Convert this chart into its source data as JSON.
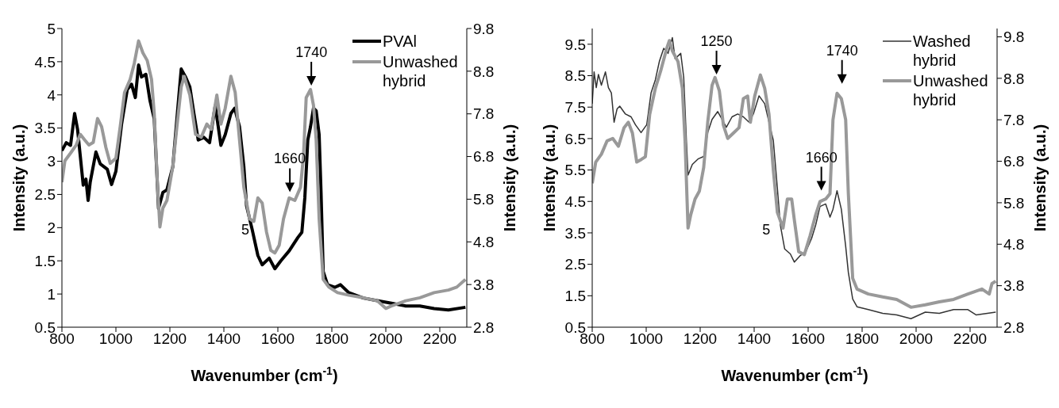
{
  "chart_data": [
    {
      "type": "line",
      "xlabel": "Wavenumber (cm$^{-1}$)",
      "ylabel": "Intensity (a.u.)",
      "y2label": "Intensity (a.u.)",
      "xlim": [
        800,
        2300
      ],
      "xticks": [
        800,
        1000,
        1200,
        1400,
        1600,
        1800,
        2000,
        2200
      ],
      "ylim": [
        0.5,
        5
      ],
      "yticks": [
        0.5,
        1,
        1.5,
        2,
        2.5,
        3,
        3.5,
        4,
        4.5,
        5
      ],
      "y2lim": [
        2.8,
        9.8
      ],
      "y2ticks": [
        2.8,
        3.8,
        4.8,
        5.8,
        6.8,
        7.8,
        8.8,
        9.8
      ],
      "legend": "top right",
      "marker": "none",
      "annotations": [
        "1740",
        "1660",
        "5"
      ],
      "series": [
        {
          "name": "PVAl",
          "color": "#000000",
          "x": [
            800,
            816,
            832,
            847,
            858,
            868,
            879,
            889,
            897,
            905,
            926,
            942,
            968,
            984,
            1000,
            1021,
            1042,
            1058,
            1072,
            1084,
            1095,
            1111,
            1126,
            1142,
            1158,
            1174,
            1189,
            1211,
            1226,
            1242,
            1258,
            1274,
            1289,
            1305,
            1326,
            1347,
            1368,
            1389,
            1405,
            1426,
            1440,
            1458,
            1474,
            1484,
            1505,
            1526,
            1542,
            1568,
            1589,
            1611,
            1642,
            1674,
            1689,
            1700,
            1711,
            1721,
            1732,
            1742,
            1753,
            1760,
            1768,
            1784,
            1811,
            1832,
            1863,
            1916,
            1968,
            2021,
            2074,
            2126,
            2179,
            2232,
            2295
          ],
          "values": [
            3.16,
            3.28,
            3.24,
            3.72,
            3.48,
            3.08,
            2.64,
            2.73,
            2.41,
            2.69,
            3.14,
            2.96,
            2.88,
            2.65,
            2.85,
            3.56,
            4.08,
            4.16,
            3.96,
            4.45,
            4.27,
            4.31,
            3.92,
            3.64,
            2.29,
            2.53,
            2.57,
            2.92,
            3.64,
            4.39,
            4.27,
            4.12,
            3.72,
            3.32,
            3.36,
            3.28,
            3.84,
            3.24,
            3.4,
            3.72,
            3.8,
            3.52,
            2.92,
            2.33,
            1.97,
            1.58,
            1.44,
            1.54,
            1.38,
            1.5,
            1.65,
            1.85,
            1.93,
            2.45,
            3.32,
            3.52,
            3.8,
            3.76,
            3.4,
            2.53,
            1.34,
            1.14,
            1.1,
            1.14,
            1.02,
            0.94,
            0.9,
            0.86,
            0.82,
            0.82,
            0.78,
            0.76,
            0.8
          ]
        },
        {
          "name": "Unwashed hybrid",
          "color": "#999999",
          "axis": "y2",
          "x": [
            800,
            811,
            832,
            853,
            868,
            884,
            900,
            916,
            932,
            947,
            963,
            979,
            1000,
            1016,
            1032,
            1053,
            1068,
            1084,
            1100,
            1116,
            1132,
            1142,
            1153,
            1163,
            1174,
            1189,
            1211,
            1226,
            1242,
            1253,
            1274,
            1295,
            1316,
            1337,
            1353,
            1374,
            1389,
            1405,
            1426,
            1442,
            1458,
            1474,
            1495,
            1511,
            1526,
            1542,
            1558,
            1574,
            1589,
            1605,
            1621,
            1642,
            1663,
            1684,
            1695,
            1705,
            1721,
            1732,
            1742,
            1753,
            1768,
            1789,
            1821,
            1863,
            1916,
            1968,
            2000,
            2021,
            2074,
            2126,
            2179,
            2232,
            2263,
            2295
          ],
          "values": [
            6.2,
            6.7,
            6.88,
            7.07,
            7.32,
            7.19,
            7.07,
            7.13,
            7.69,
            7.5,
            7.01,
            6.64,
            6.76,
            7.5,
            8.3,
            8.61,
            8.98,
            9.51,
            9.23,
            9.05,
            8.61,
            7.81,
            6.27,
            5.15,
            5.59,
            5.77,
            6.57,
            7.5,
            8.43,
            8.68,
            8.24,
            7.32,
            7.25,
            7.56,
            7.44,
            8.24,
            7.56,
            7.93,
            8.68,
            8.3,
            7.19,
            6.08,
            5.34,
            5.28,
            5.83,
            5.71,
            5.03,
            4.6,
            4.54,
            4.72,
            5.34,
            5.83,
            5.77,
            6.08,
            6.82,
            8.18,
            8.37,
            8,
            7.19,
            5.34,
            3.92,
            3.74,
            3.61,
            3.55,
            3.49,
            3.42,
            3.24,
            3.3,
            3.42,
            3.49,
            3.61,
            3.67,
            3.74,
            3.92
          ]
        }
      ]
    },
    {
      "type": "line",
      "xlabel": "Wavenumber (cm$^{-1}$)",
      "ylabel": "Intensity (a.u.)",
      "y2label": "Intensity (a.u.)",
      "xlim": [
        800,
        2300
      ],
      "xticks": [
        800,
        1000,
        1200,
        1400,
        1600,
        1800,
        2000,
        2200
      ],
      "ylim": [
        0.5,
        10
      ],
      "yticks": [
        0.5,
        1.5,
        2.5,
        3.5,
        4.5,
        5.5,
        6.5,
        7.5,
        8.5,
        9.5
      ],
      "y2lim": [
        2.8,
        10
      ],
      "y2ticks": [
        2.8,
        3.8,
        4.8,
        5.8,
        6.8,
        7.8,
        8.8,
        9.8
      ],
      "legend": "top right",
      "marker": "none",
      "annotations": [
        "1250",
        "1740",
        "1660",
        "5"
      ],
      "series": [
        {
          "name": "Washed hybrid",
          "color": "#333333",
          "x": [
            800,
            807,
            815,
            823,
            834,
            849,
            860,
            871,
            881,
            892,
            902,
            923,
            944,
            960,
            981,
            1002,
            1018,
            1034,
            1049,
            1065,
            1081,
            1097,
            1107,
            1128,
            1139,
            1149,
            1155,
            1171,
            1192,
            1213,
            1228,
            1244,
            1265,
            1281,
            1297,
            1318,
            1339,
            1360,
            1381,
            1397,
            1418,
            1439,
            1455,
            1471,
            1486,
            1497,
            1513,
            1534,
            1549,
            1571,
            1592,
            1613,
            1628,
            1644,
            1665,
            1681,
            1692,
            1707,
            1723,
            1739,
            1749,
            1765,
            1781,
            1823,
            1876,
            1928,
            1981,
            2034,
            2086,
            2139,
            2192,
            2223,
            2295
          ],
          "values": [
            7.61,
            8.62,
            8.12,
            8.54,
            8.2,
            8.62,
            8.12,
            7.95,
            7.02,
            7.44,
            7.53,
            7.28,
            7.19,
            6.94,
            6.69,
            6.94,
            7.95,
            8.37,
            8.96,
            9.37,
            9.21,
            9.71,
            9.04,
            9.21,
            8.45,
            6.44,
            5.34,
            5.68,
            5.85,
            5.93,
            6.69,
            7.11,
            7.36,
            7.11,
            6.86,
            7.19,
            7.28,
            7.19,
            7.02,
            7.28,
            7.86,
            7.61,
            7.02,
            6.44,
            4.92,
            3.75,
            2.99,
            2.83,
            2.57,
            2.78,
            2.91,
            3.33,
            3.75,
            4.34,
            4.42,
            4,
            4.25,
            4.84,
            4.25,
            3.08,
            2.24,
            1.4,
            1.15,
            1.06,
            0.94,
            0.89,
            0.77,
            0.98,
            0.94,
            1.06,
            1.06,
            0.89,
            0.98
          ]
        },
        {
          "name": "Unwashed hybrid",
          "color": "#999999",
          "axis": "y2",
          "x": [
            800,
            813,
            834,
            855,
            876,
            897,
            918,
            934,
            949,
            965,
            981,
            997,
            1013,
            1034,
            1055,
            1076,
            1086,
            1097,
            1118,
            1134,
            1144,
            1155,
            1165,
            1181,
            1197,
            1213,
            1228,
            1244,
            1255,
            1271,
            1286,
            1302,
            1323,
            1344,
            1360,
            1376,
            1386,
            1402,
            1423,
            1439,
            1455,
            1471,
            1486,
            1507,
            1523,
            1539,
            1549,
            1565,
            1586,
            1607,
            1628,
            1644,
            1665,
            1681,
            1692,
            1707,
            1723,
            1739,
            1749,
            1765,
            1781,
            1823,
            1876,
            1928,
            1981,
            2034,
            2086,
            2139,
            2192,
            2244,
            2271,
            2281,
            2295
          ],
          "values": [
            6.27,
            6.78,
            6.97,
            7.29,
            7.35,
            7.16,
            7.61,
            7.74,
            7.48,
            6.78,
            6.84,
            6.91,
            7.93,
            8.56,
            9.01,
            9.52,
            9.71,
            9.46,
            9.2,
            8.56,
            7.29,
            5.19,
            5.51,
            5.89,
            6.08,
            6.65,
            7.74,
            8.63,
            8.82,
            8.5,
            7.67,
            7.35,
            7.48,
            7.61,
            8.31,
            8.37,
            7.74,
            8.37,
            8.88,
            8.56,
            7.93,
            6.59,
            5.57,
            5.19,
            5.89,
            5.89,
            5.38,
            4.62,
            4.55,
            5,
            5.51,
            5.83,
            5.89,
            6.02,
            7.8,
            8.44,
            8.31,
            7.8,
            6.02,
            3.98,
            3.72,
            3.6,
            3.53,
            3.47,
            3.28,
            3.34,
            3.41,
            3.47,
            3.6,
            3.72,
            3.6,
            3.85,
            3.91
          ]
        }
      ]
    }
  ]
}
